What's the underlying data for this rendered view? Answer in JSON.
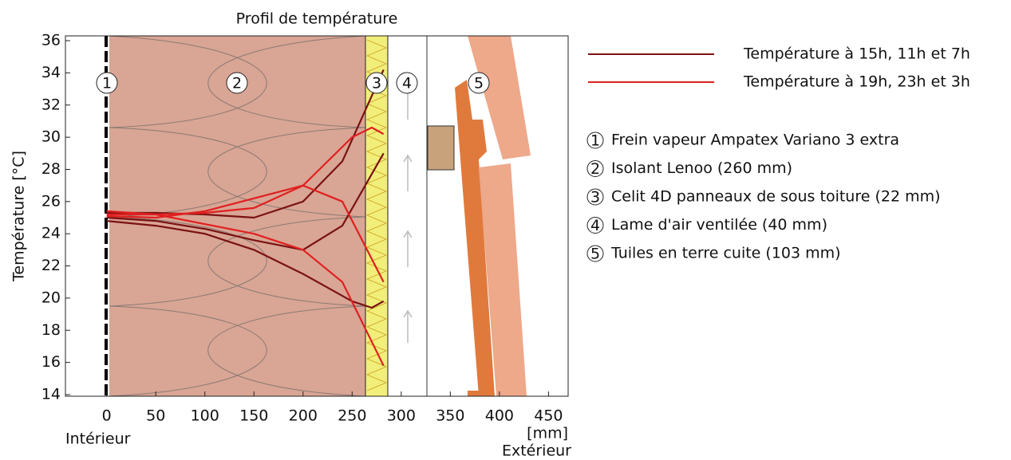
{
  "chart_data": {
    "type": "line",
    "title": "Profil de température",
    "y_label": "Température [°C]",
    "x_label": "[mm]",
    "x_left_note": "Intérieur",
    "x_right_note": "Extérieur",
    "xlim": [
      -42,
      470
    ],
    "ylim": [
      13.9,
      36.3
    ],
    "xticks": [
      0,
      50,
      100,
      150,
      200,
      250,
      300,
      350,
      400,
      450
    ],
    "yticks": [
      14,
      16,
      18,
      20,
      22,
      24,
      26,
      28,
      30,
      32,
      34,
      36
    ],
    "series": [
      {
        "name": "Température à 15h, 11h et 7h",
        "color": "#7a1212",
        "x": [
          0,
          50,
          100,
          150,
          200,
          240,
          282
        ],
        "values": [
          25.3,
          25.3,
          25.2,
          25.0,
          26.0,
          28.5,
          34.2
        ]
      },
      {
        "color": "#7a1212",
        "x": [
          0,
          50,
          100,
          150,
          200,
          240,
          282
        ],
        "values": [
          25.0,
          24.8,
          24.3,
          23.6,
          23.0,
          24.5,
          29.0
        ]
      },
      {
        "color": "#7a1212",
        "x": [
          0,
          50,
          100,
          150,
          200,
          250,
          270,
          282
        ],
        "values": [
          24.8,
          24.5,
          24.0,
          23.0,
          21.5,
          19.8,
          19.4,
          19.8
        ]
      },
      {
        "name": "Température à 19h, 23h et 3h",
        "color": "#e02020",
        "x": [
          0,
          50,
          100,
          150,
          200,
          250,
          270,
          282
        ],
        "values": [
          25.2,
          25.2,
          25.3,
          25.6,
          27.0,
          30.0,
          30.6,
          30.2
        ]
      },
      {
        "color": "#e02020",
        "x": [
          0,
          50,
          100,
          150,
          200,
          240,
          282
        ],
        "values": [
          25.1,
          25.0,
          25.4,
          26.2,
          27.0,
          26.0,
          21.0
        ]
      },
      {
        "color": "#e02020",
        "x": [
          0,
          50,
          100,
          150,
          200,
          240,
          282
        ],
        "values": [
          25.4,
          25.2,
          24.6,
          24.0,
          23.0,
          21.0,
          15.8
        ]
      }
    ],
    "layers": [
      {
        "number": "1",
        "label": "Frein vapeur Ampatex Variano 3 extra"
      },
      {
        "number": "2",
        "label": "Isolant Lenoo (260 mm)"
      },
      {
        "number": "3",
        "label": "Celit 4D panneaux de sous toiture (22 mm)"
      },
      {
        "number": "4",
        "label": "Lame d'air ventilée (40 mm)"
      },
      {
        "number": "5",
        "label": "Tuiles en terre cuite (103 mm)"
      }
    ]
  }
}
